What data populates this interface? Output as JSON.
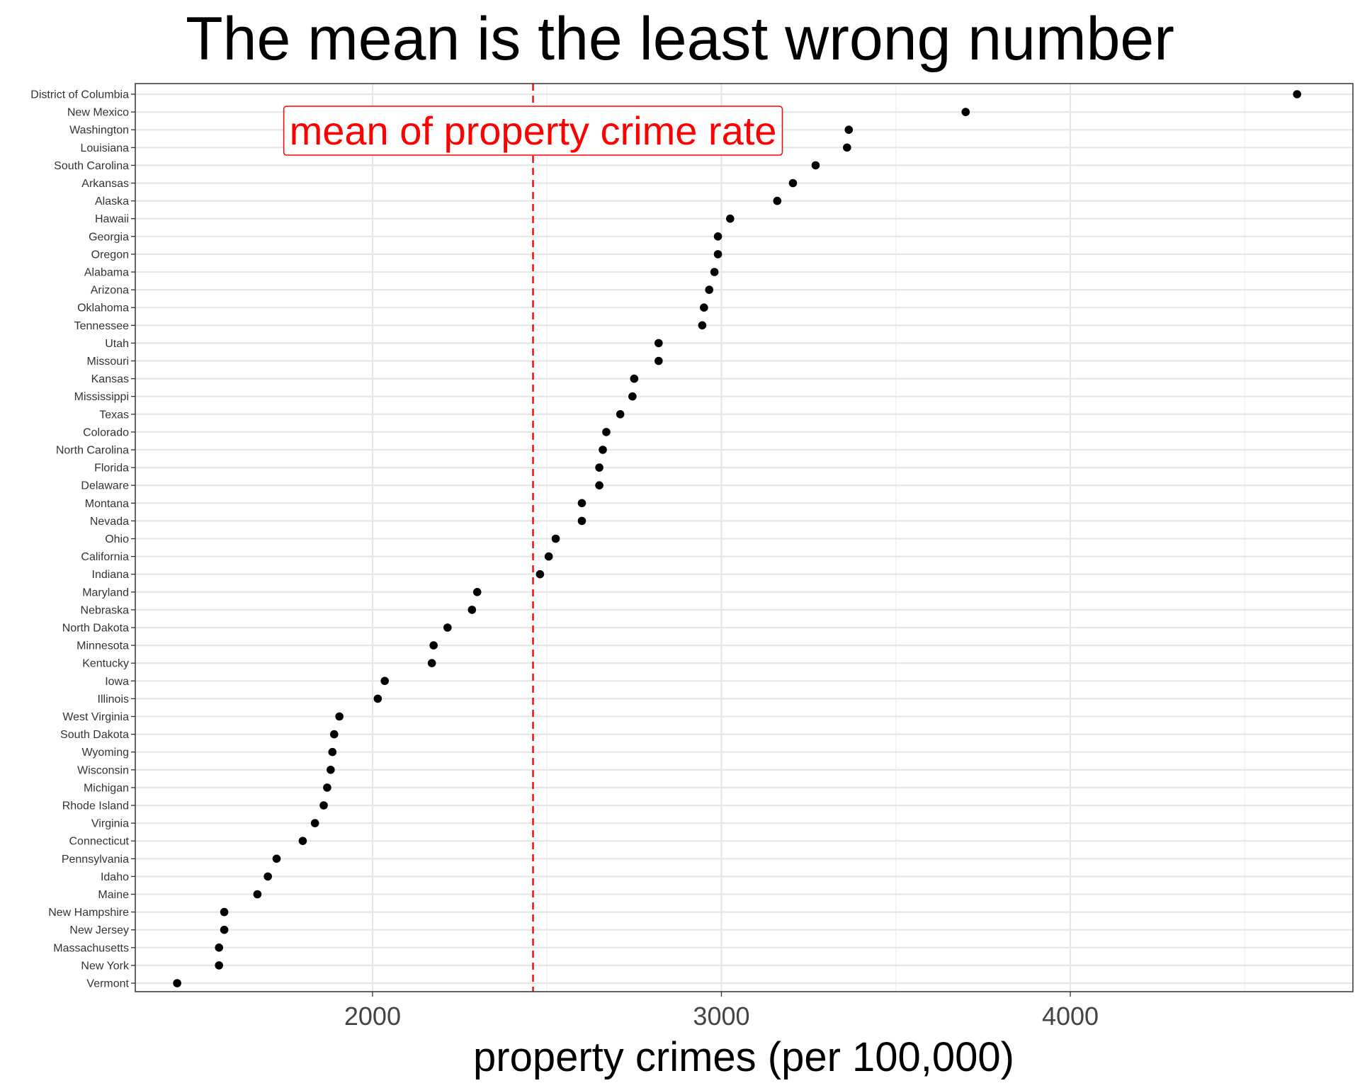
{
  "chart_data": {
    "type": "scatter",
    "title": "The mean is the least wrong number",
    "xlabel": "property crimes (per 100,000)",
    "ylabel": "",
    "xlim": [
      1320,
      4810
    ],
    "xticks": [
      2000,
      3000,
      4000
    ],
    "grid": true,
    "annotation": {
      "text": "mean of property crime rate",
      "x": 2460,
      "color": "#ff0000"
    },
    "categories": [
      "District of Columbia",
      "New Mexico",
      "Washington",
      "Louisiana",
      "South Carolina",
      "Arkansas",
      "Alaska",
      "Hawaii",
      "Georgia",
      "Oregon",
      "Alabama",
      "Arizona",
      "Oklahoma",
      "Tennessee",
      "Utah",
      "Missouri",
      "Kansas",
      "Mississippi",
      "Texas",
      "Colorado",
      "North Carolina",
      "Florida",
      "Delaware",
      "Montana",
      "Nevada",
      "Ohio",
      "California",
      "Indiana",
      "Maryland",
      "Nebraska",
      "North Dakota",
      "Minnesota",
      "Kentucky",
      "Iowa",
      "Illinois",
      "West Virginia",
      "South Dakota",
      "Wyoming",
      "Wisconsin",
      "Michigan",
      "Rhode Island",
      "Virginia",
      "Connecticut",
      "Pennsylvania",
      "Idaho",
      "Maine",
      "New Hampshire",
      "New Jersey",
      "Massachusetts",
      "New York",
      "Vermont"
    ],
    "values": [
      4650,
      3700,
      3365,
      3360,
      3270,
      3205,
      3160,
      3025,
      2990,
      2990,
      2980,
      2965,
      2950,
      2945,
      2820,
      2820,
      2750,
      2745,
      2710,
      2670,
      2660,
      2650,
      2650,
      2600,
      2600,
      2525,
      2505,
      2480,
      2300,
      2285,
      2215,
      2175,
      2170,
      2035,
      2015,
      1905,
      1890,
      1885,
      1880,
      1870,
      1860,
      1835,
      1800,
      1725,
      1700,
      1670,
      1575,
      1575,
      1560,
      1560,
      1440
    ]
  }
}
